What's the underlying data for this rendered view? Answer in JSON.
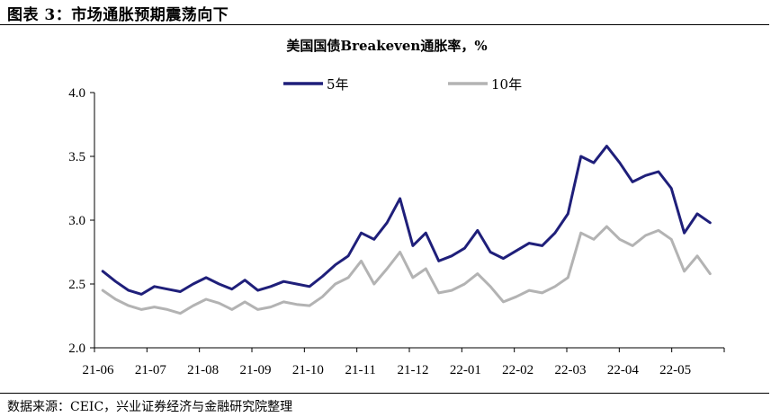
{
  "header": {
    "figure_title": "图表 3：市场通胀预期震荡向下"
  },
  "footer": {
    "source": "数据来源：CEIC，兴业证券经济与金融研究院整理"
  },
  "chart_data": {
    "type": "line",
    "title": "美国国债Breakeven通胀率，%",
    "xlabel": "",
    "ylabel": "",
    "ylim": [
      2.0,
      4.0
    ],
    "y_ticks": [
      "2.0",
      "2.5",
      "3.0",
      "3.5",
      "4.0"
    ],
    "x_ticks": [
      "21-06",
      "21-07",
      "21-08",
      "21-09",
      "21-10",
      "21-11",
      "21-12",
      "22-01",
      "22-02",
      "22-03",
      "22-04",
      "22-05"
    ],
    "legend_position": "top-center",
    "grid": false,
    "series": [
      {
        "name": "5年",
        "color": "#1f1f7a",
        "x": [
          "21-06",
          "21-06",
          "21-06",
          "21-06",
          "21-07",
          "21-07",
          "21-07",
          "21-07",
          "21-08",
          "21-08",
          "21-08",
          "21-08",
          "21-09",
          "21-09",
          "21-09",
          "21-09",
          "21-10",
          "21-10",
          "21-10",
          "21-10",
          "21-11",
          "21-11",
          "21-11",
          "21-11",
          "21-12",
          "21-12",
          "21-12",
          "21-12",
          "22-01",
          "22-01",
          "22-01",
          "22-01",
          "22-02",
          "22-02",
          "22-02",
          "22-02",
          "22-03",
          "22-03",
          "22-03",
          "22-03",
          "22-04",
          "22-04",
          "22-04",
          "22-04",
          "22-05",
          "22-05",
          "22-05",
          "22-05"
        ],
        "values": [
          2.6,
          2.52,
          2.45,
          2.42,
          2.48,
          2.46,
          2.44,
          2.5,
          2.55,
          2.5,
          2.46,
          2.53,
          2.45,
          2.48,
          2.52,
          2.5,
          2.48,
          2.56,
          2.65,
          2.72,
          2.9,
          2.85,
          2.98,
          3.17,
          2.8,
          2.9,
          2.68,
          2.72,
          2.78,
          2.92,
          2.75,
          2.7,
          2.76,
          2.82,
          2.8,
          2.9,
          3.05,
          3.5,
          3.45,
          3.58,
          3.45,
          3.3,
          3.35,
          3.38,
          3.25,
          2.9,
          3.05,
          2.98
        ]
      },
      {
        "name": "10年",
        "color": "#b3b3b3",
        "x": [
          "21-06",
          "21-06",
          "21-06",
          "21-06",
          "21-07",
          "21-07",
          "21-07",
          "21-07",
          "21-08",
          "21-08",
          "21-08",
          "21-08",
          "21-09",
          "21-09",
          "21-09",
          "21-09",
          "21-10",
          "21-10",
          "21-10",
          "21-10",
          "21-11",
          "21-11",
          "21-11",
          "21-11",
          "21-12",
          "21-12",
          "21-12",
          "21-12",
          "22-01",
          "22-01",
          "22-01",
          "22-01",
          "22-02",
          "22-02",
          "22-02",
          "22-02",
          "22-03",
          "22-03",
          "22-03",
          "22-03",
          "22-04",
          "22-04",
          "22-04",
          "22-04",
          "22-05",
          "22-05",
          "22-05",
          "22-05"
        ],
        "values": [
          2.45,
          2.38,
          2.33,
          2.3,
          2.32,
          2.3,
          2.27,
          2.33,
          2.38,
          2.35,
          2.3,
          2.36,
          2.3,
          2.32,
          2.36,
          2.34,
          2.33,
          2.4,
          2.5,
          2.55,
          2.68,
          2.5,
          2.62,
          2.75,
          2.55,
          2.62,
          2.43,
          2.45,
          2.5,
          2.58,
          2.48,
          2.36,
          2.4,
          2.45,
          2.43,
          2.48,
          2.55,
          2.9,
          2.85,
          2.95,
          2.85,
          2.8,
          2.88,
          2.92,
          2.85,
          2.6,
          2.72,
          2.58
        ]
      }
    ]
  }
}
